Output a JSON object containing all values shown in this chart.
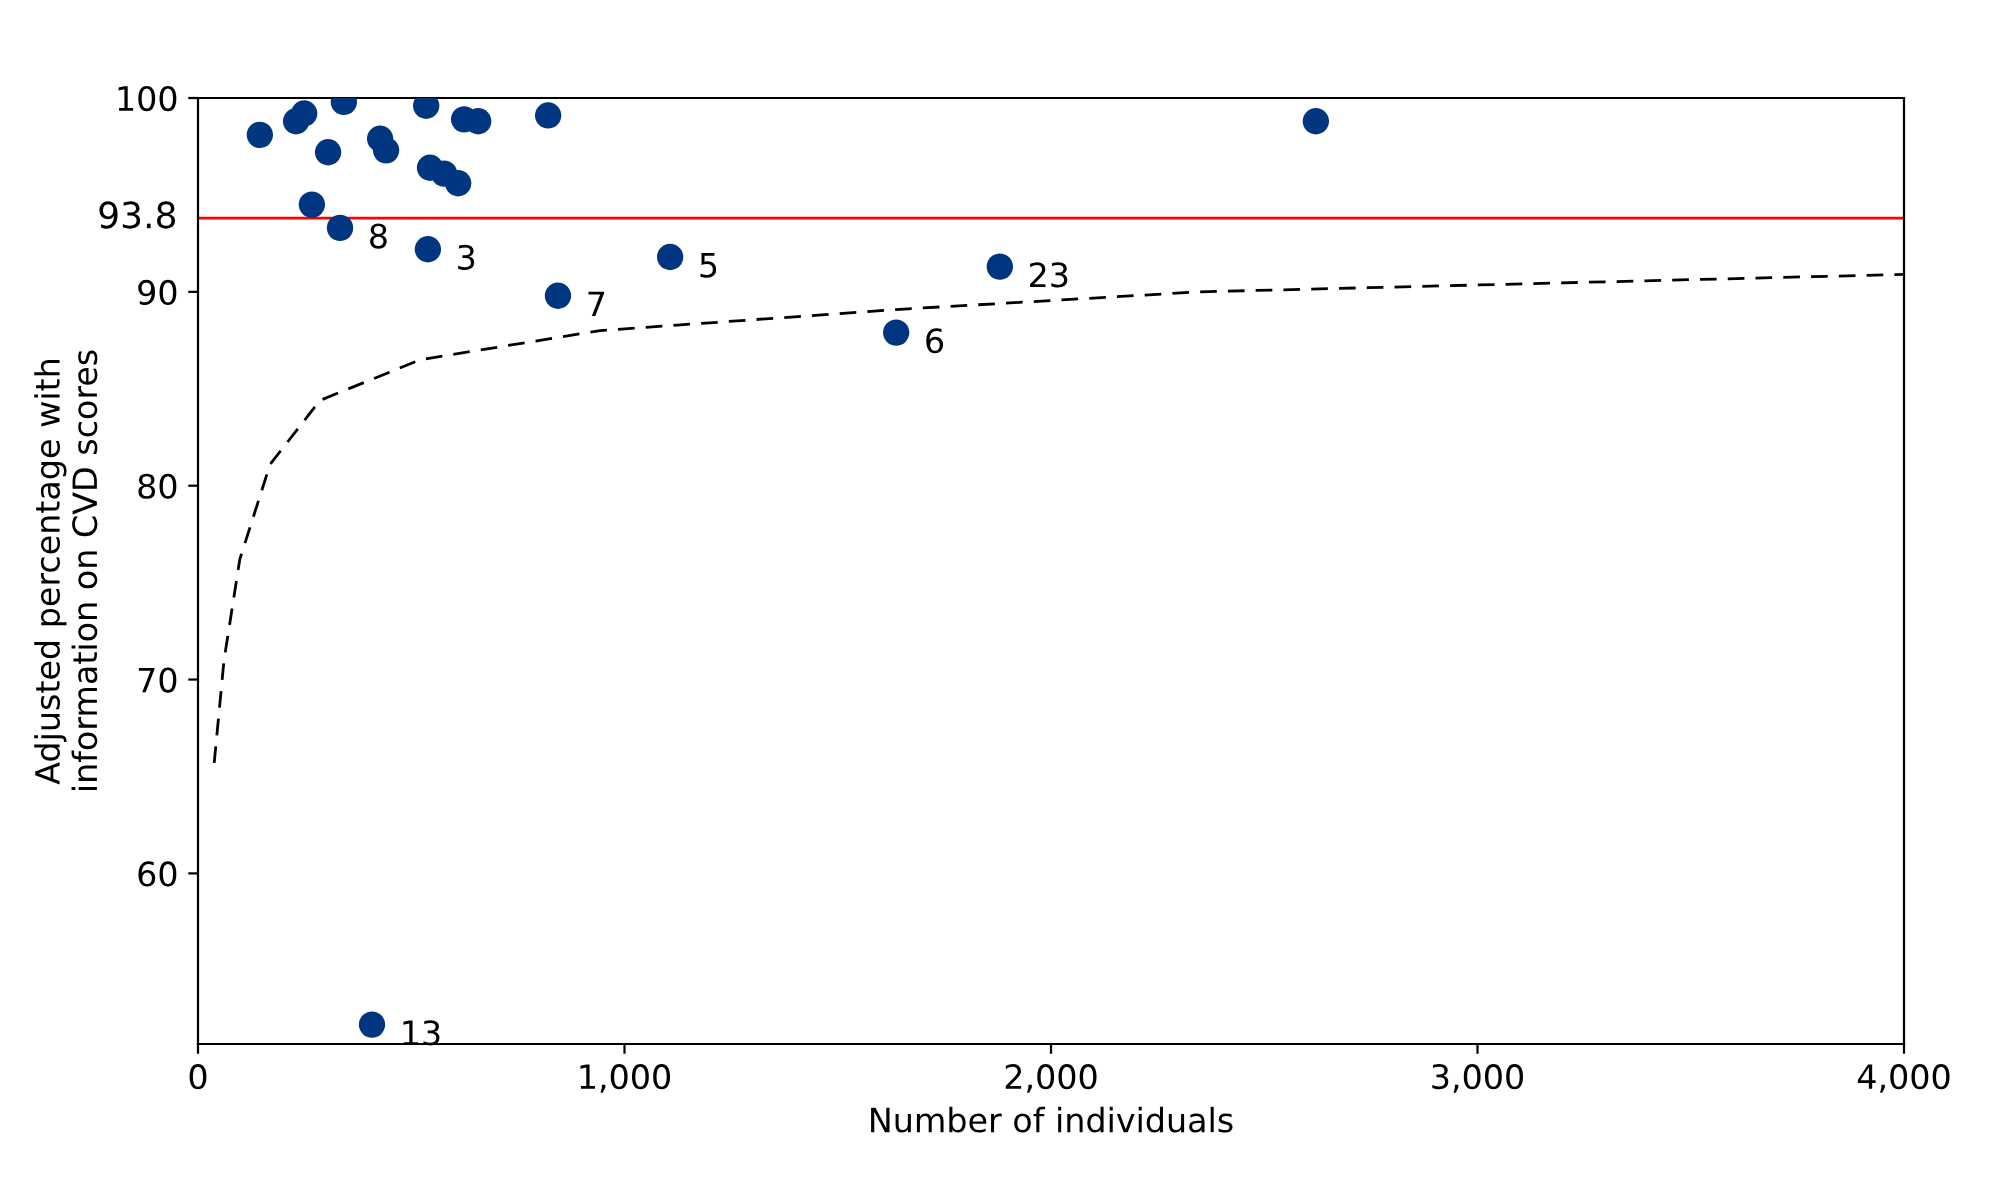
{
  "chart_data": {
    "type": "scatter",
    "xlabel": "Number of individuals",
    "ylabel": "Adjusted percentage with\ninformation on CVD scores",
    "xlim": [
      0,
      4000
    ],
    "xticks": [
      {
        "value": 0,
        "label": "0"
      },
      {
        "value": 1000,
        "label": "1,000"
      },
      {
        "value": 2000,
        "label": "2,000"
      },
      {
        "value": 3000,
        "label": "3,000"
      },
      {
        "value": 4000,
        "label": "4,000"
      }
    ],
    "ylim": [
      51.2,
      100
    ],
    "yticks": [
      60,
      70,
      80,
      90,
      100
    ],
    "grid": false,
    "legend": false,
    "marker": "circle",
    "series": [
      {
        "color": "#003580",
        "x": [
          145,
          230,
          249,
          342,
          305,
          267,
          333,
          427,
          441,
          535,
          544,
          577,
          610,
          624,
          657,
          539,
          821,
          844,
          1107,
          1637,
          1880,
          2621,
          408
        ],
        "values": [
          98.1,
          98.8,
          99.2,
          99.8,
          97.2,
          94.5,
          93.3,
          97.9,
          97.3,
          99.6,
          96.4,
          96.1,
          95.6,
          98.9,
          98.8,
          92.2,
          99.1,
          89.8,
          91.8,
          87.9,
          91.3,
          98.8,
          52.2
        ]
      },
      {
        "type": "line",
        "color": "#000000",
        "line_style": "dashed",
        "marker": "none",
        "x": [
          38,
          61,
          98,
          169,
          286,
          521,
          943,
          1646,
          2349,
          4000
        ],
        "values": [
          65.7,
          71,
          76.2,
          81.1,
          84.4,
          86.5,
          88.0,
          89.1,
          90.0,
          90.9
        ]
      }
    ],
    "ref_lines": [
      {
        "axis": "y",
        "value": 93.8,
        "label": "93.8",
        "color": "#ff0000"
      }
    ],
    "annotations": [
      {
        "text": "8",
        "x": 333,
        "y": 93.3
      },
      {
        "text": "3",
        "x": 539,
        "y": 92.2
      },
      {
        "text": "7",
        "x": 844,
        "y": 89.8
      },
      {
        "text": "5",
        "x": 1107,
        "y": 91.8
      },
      {
        "text": "6",
        "x": 1637,
        "y": 87.9
      },
      {
        "text": "23",
        "x": 1880,
        "y": 91.3
      },
      {
        "text": "13",
        "x": 408,
        "y": 52.2
      }
    ]
  }
}
